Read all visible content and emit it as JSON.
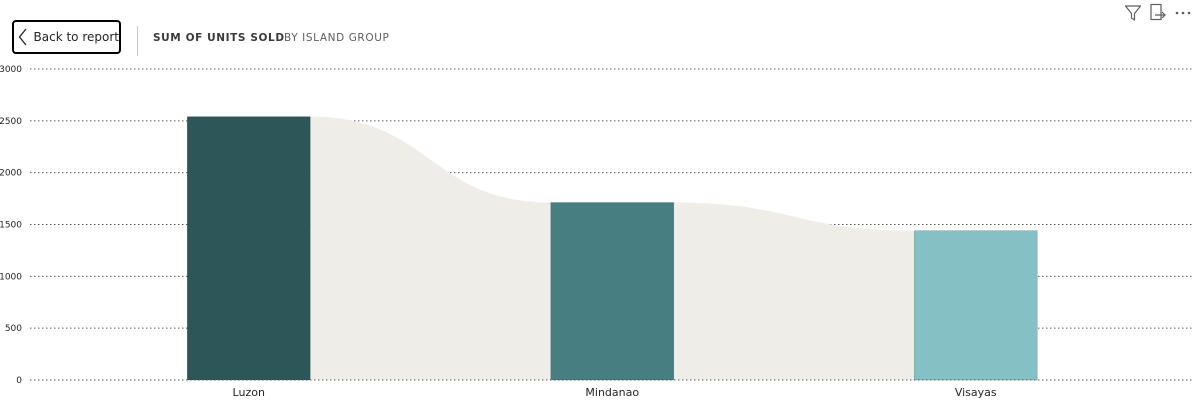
{
  "header": {
    "back_label": "Back to report",
    "measure": "SUM OF UNITS SOLD",
    "dimension": "BY ISLAND GROUP"
  },
  "toolbar": {
    "icons": [
      "filter-icon",
      "export-icon",
      "more-options-icon"
    ]
  },
  "colors": {
    "bars": [
      "#2d5659",
      "#477e82",
      "#85c1c4"
    ],
    "ribbon": "#efede7",
    "grid": "#595959"
  },
  "chart_data": {
    "type": "bar",
    "title": "",
    "xlabel": "",
    "ylabel": "",
    "categories": [
      "Luzon",
      "Mindanao",
      "Visayas"
    ],
    "series": [
      {
        "values": [
          2540,
          1712,
          1440
        ]
      }
    ],
    "ylim": [
      0,
      3000
    ],
    "yticks": [
      "0",
      "500",
      "1000",
      "1500",
      "2000",
      "2500",
      "3000"
    ],
    "grid": true,
    "legend": "none"
  }
}
